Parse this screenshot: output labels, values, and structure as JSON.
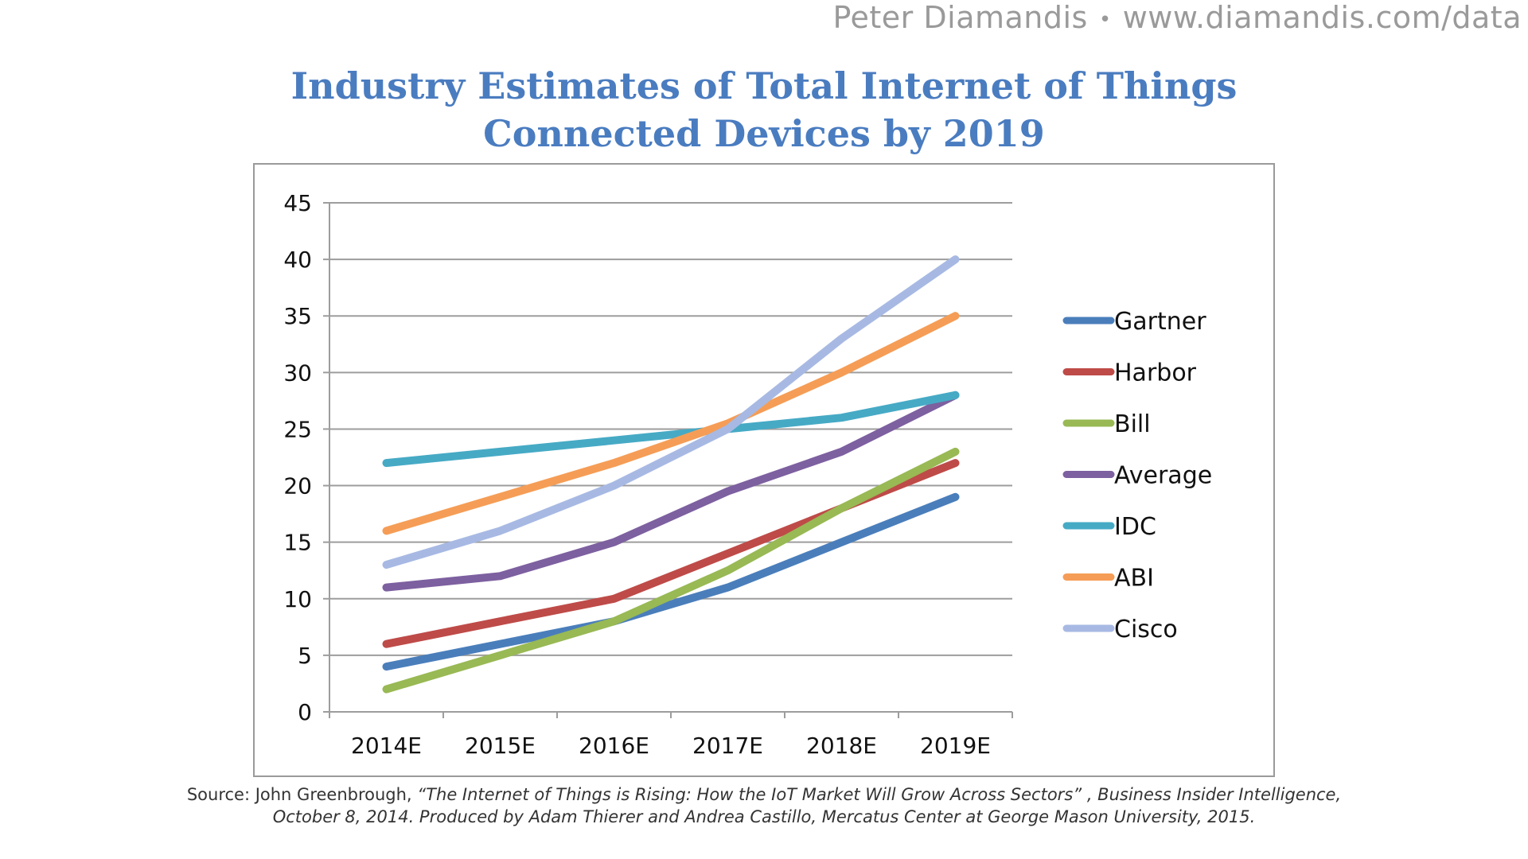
{
  "header": {
    "author": "Peter Diamandis",
    "separator": "•",
    "url": "www.diamandis.com/data"
  },
  "source": {
    "prefix": "Source: John Greenbrough, ",
    "italic": "“The Internet of Things is Rising: How the IoT Market Will Grow Across Sectors” , Business Insider Intelligence, October 8, 2014. Produced by  Adam Thierer and Andrea Castillo, Mercatus Center at George Mason University, 2015."
  },
  "chart_data": {
    "type": "line",
    "title": "Industry Estimates of Total Internet of Things Connected Devices by 2019",
    "title_lines": [
      "Industry Estimates of Total Internet of Things",
      "Connected Devices by 2019"
    ],
    "xlabel": "",
    "ylabel": "",
    "categories": [
      "2014E",
      "2015E",
      "2016E",
      "2017E",
      "2018E",
      "2019E"
    ],
    "ylim": [
      0,
      45
    ],
    "yticks": [
      0,
      5,
      10,
      15,
      20,
      25,
      30,
      35,
      40,
      45
    ],
    "grid": true,
    "legend_position": "right",
    "series": [
      {
        "name": "Gartner",
        "color": "#4a7ebb",
        "values": [
          4,
          6,
          8,
          11,
          15,
          19
        ]
      },
      {
        "name": "Harbor",
        "color": "#be4b48",
        "values": [
          6,
          8,
          10,
          14,
          18,
          22
        ]
      },
      {
        "name": "Bill",
        "color": "#98b954",
        "values": [
          2,
          5,
          8,
          12.5,
          18,
          23
        ]
      },
      {
        "name": "Average",
        "color": "#7d60a0",
        "values": [
          11,
          12,
          15,
          19.5,
          23,
          28
        ]
      },
      {
        "name": "IDC",
        "color": "#46aac5",
        "values": [
          22,
          23,
          24,
          25,
          26,
          28
        ]
      },
      {
        "name": "ABI",
        "color": "#f59d56",
        "values": [
          16,
          19,
          22,
          25.5,
          30,
          35
        ]
      },
      {
        "name": "Cisco",
        "color": "#a7b9e3",
        "values": [
          13,
          16,
          20,
          25,
          33,
          40
        ]
      }
    ]
  }
}
